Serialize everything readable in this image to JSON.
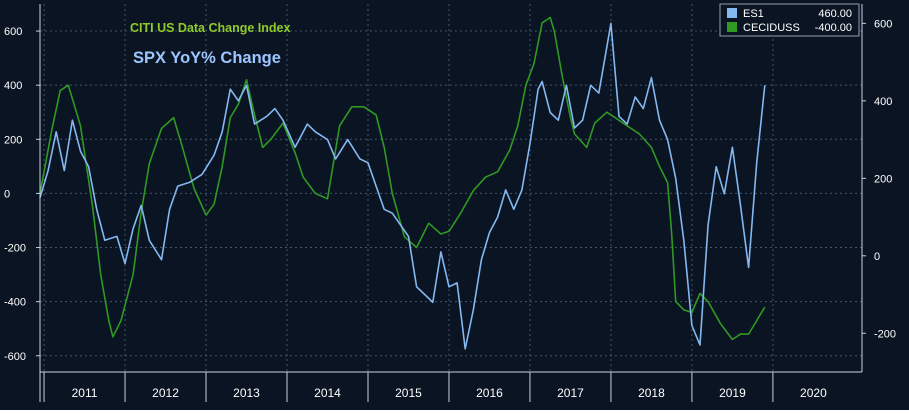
{
  "chart_data": {
    "type": "line",
    "annotations": [
      {
        "text": "CITI US Data Change Index",
        "color": "#8fcc2a"
      },
      {
        "text": "SPX YoY% Change",
        "color": "#9cc6ff"
      }
    ],
    "legend": {
      "placement": "top-right",
      "entries": [
        {
          "name": "ES1",
          "value": "460.00",
          "color": "#84b8f0"
        },
        {
          "name": "CECIDUSS",
          "value": "-400.00",
          "color": "#2e9a22"
        }
      ]
    },
    "y_left": {
      "ticks": [
        600,
        400,
        200,
        0,
        -200,
        -400,
        -600
      ],
      "tick_labels": [
        "600",
        "400",
        "200",
        "0",
        "-200",
        "-400",
        "-600"
      ],
      "range": [
        -660,
        700
      ]
    },
    "y_right": {
      "ticks": [
        600,
        400,
        200,
        0,
        -200
      ],
      "tick_labels": [
        "600",
        "400",
        "200",
        "0",
        "-200"
      ],
      "range": [
        -300,
        650
      ]
    },
    "x_axis": {
      "years": [
        "2011",
        "2012",
        "2013",
        "2014",
        "2015",
        "2016",
        "2017",
        "2018",
        "2019",
        "2020"
      ],
      "range": [
        2010.95,
        2021.1
      ]
    },
    "grid": true,
    "colors": {
      "background": "#0b1422",
      "grid": "#41556e",
      "axis_text": "#ffffff",
      "axis_line": "#c8d2dc"
    },
    "series": [
      {
        "name": "CECIDUSS",
        "axis": "left",
        "color": "#2e9a22",
        "x": [
          2010.95,
          2011.1,
          2011.2,
          2011.3,
          2011.45,
          2011.6,
          2011.7,
          2011.8,
          2011.85,
          2011.95,
          2012.1,
          2012.2,
          2012.3,
          2012.45,
          2012.6,
          2012.7,
          2012.85,
          2013.0,
          2013.1,
          2013.2,
          2013.3,
          2013.4,
          2013.5,
          2013.6,
          2013.7,
          2013.8,
          2013.95,
          2014.1,
          2014.2,
          2014.35,
          2014.5,
          2014.65,
          2014.8,
          2014.95,
          2015.1,
          2015.2,
          2015.3,
          2015.45,
          2015.6,
          2015.75,
          2015.9,
          2016.0,
          2016.15,
          2016.3,
          2016.45,
          2016.6,
          2016.75,
          2016.85,
          2016.95,
          2017.05,
          2017.15,
          2017.25,
          2017.3,
          2017.4,
          2017.5,
          2017.55,
          2017.7,
          2017.8,
          2017.95,
          2018.05,
          2018.2,
          2018.35,
          2018.5,
          2018.6,
          2018.7,
          2018.75,
          2018.8,
          2018.9,
          2019.0,
          2019.1,
          2019.2,
          2019.35,
          2019.5,
          2019.6,
          2019.7,
          2019.8,
          2019.9
        ],
        "y": [
          0,
          240,
          380,
          400,
          250,
          -50,
          -300,
          -470,
          -530,
          -470,
          -300,
          -70,
          110,
          240,
          280,
          180,
          20,
          -80,
          -40,
          100,
          280,
          330,
          420,
          290,
          170,
          200,
          260,
          150,
          60,
          0,
          -20,
          250,
          320,
          320,
          290,
          170,
          0,
          -160,
          -200,
          -110,
          -150,
          -140,
          -70,
          10,
          60,
          80,
          160,
          250,
          400,
          480,
          630,
          650,
          600,
          430,
          280,
          220,
          170,
          260,
          300,
          280,
          250,
          220,
          170,
          100,
          40,
          -150,
          -400,
          -430,
          -440,
          -370,
          -400,
          -480,
          -540,
          -520,
          -520,
          -470,
          -420
        ]
      },
      {
        "name": "ES1",
        "axis": "right",
        "color": "#84b8f0",
        "x": [
          2010.95,
          2011.05,
          2011.15,
          2011.25,
          2011.35,
          2011.45,
          2011.55,
          2011.65,
          2011.75,
          2011.9,
          2012.0,
          2012.1,
          2012.2,
          2012.3,
          2012.45,
          2012.55,
          2012.65,
          2012.8,
          2012.95,
          2013.1,
          2013.2,
          2013.3,
          2013.4,
          2013.5,
          2013.6,
          2013.75,
          2013.85,
          2013.95,
          2014.1,
          2014.25,
          2014.35,
          2014.5,
          2014.6,
          2014.75,
          2014.9,
          2015.0,
          2015.1,
          2015.2,
          2015.3,
          2015.4,
          2015.5,
          2015.6,
          2015.7,
          2015.8,
          2015.9,
          2016.0,
          2016.1,
          2016.2,
          2016.3,
          2016.4,
          2016.5,
          2016.6,
          2016.7,
          2016.8,
          2016.9,
          2017.0,
          2017.1,
          2017.15,
          2017.25,
          2017.35,
          2017.45,
          2017.55,
          2017.65,
          2017.75,
          2017.85,
          2017.95,
          2018.0,
          2018.1,
          2018.2,
          2018.3,
          2018.4,
          2018.5,
          2018.6,
          2018.7,
          2018.8,
          2018.9,
          2019.0,
          2019.1,
          2019.2,
          2019.3,
          2019.4,
          2019.5,
          2019.6,
          2019.7,
          2019.8,
          2019.9
        ],
        "y": [
          150,
          220,
          320,
          220,
          350,
          270,
          230,
          120,
          40,
          50,
          -20,
          70,
          130,
          40,
          -10,
          120,
          180,
          190,
          210,
          260,
          320,
          430,
          400,
          440,
          340,
          360,
          380,
          350,
          280,
          340,
          320,
          300,
          250,
          300,
          250,
          240,
          180,
          120,
          110,
          80,
          50,
          -80,
          -100,
          -120,
          10,
          -80,
          -70,
          -240,
          -140,
          -10,
          60,
          100,
          170,
          120,
          170,
          290,
          430,
          450,
          370,
          350,
          440,
          330,
          350,
          440,
          420,
          540,
          600,
          360,
          340,
          410,
          380,
          460,
          350,
          300,
          200,
          40,
          -180,
          -230,
          80,
          230,
          160,
          280,
          130,
          -30,
          240,
          440
        ]
      }
    ]
  }
}
